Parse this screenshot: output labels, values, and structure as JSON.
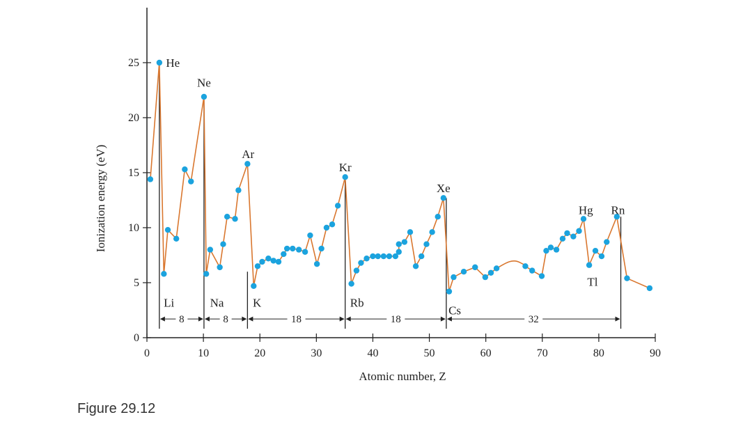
{
  "caption": "Figure 29.12",
  "colors": {
    "line": "#d9772f",
    "point": "#1ba3de",
    "axis": "#222222",
    "text": "#222222"
  },
  "chart_data": {
    "type": "line",
    "xlabel": "Atomic number, Z",
    "ylabel": "Ionization energy (eV)",
    "xlim": [
      0,
      90
    ],
    "ylim": [
      0,
      30
    ],
    "x_ticks": [
      0,
      10,
      20,
      30,
      40,
      50,
      60,
      70,
      80,
      90
    ],
    "y_ticks": [
      0,
      5,
      10,
      15,
      20,
      25
    ],
    "grid": false,
    "points": [
      [
        0.6,
        14.4
      ],
      [
        2.2,
        25.0
      ],
      [
        3,
        5.8
      ],
      [
        3.7,
        9.8
      ],
      [
        5.2,
        9.0
      ],
      [
        6.7,
        15.3
      ],
      [
        7.8,
        14.2
      ],
      [
        10.1,
        21.9
      ],
      [
        10.5,
        5.8
      ],
      [
        11.2,
        8.0
      ],
      [
        12.9,
        6.4
      ],
      [
        13.5,
        8.5
      ],
      [
        14.2,
        11.0
      ],
      [
        15.6,
        10.8
      ],
      [
        16.2,
        13.4
      ],
      [
        17.8,
        15.8
      ],
      [
        18.9,
        4.7
      ],
      [
        19.6,
        6.5
      ],
      [
        20.4,
        6.9
      ],
      [
        21.5,
        7.2
      ],
      [
        22.4,
        7.0
      ],
      [
        23.3,
        6.9
      ],
      [
        24.2,
        7.6
      ],
      [
        24.8,
        8.1
      ],
      [
        25.8,
        8.1
      ],
      [
        26.9,
        8.0
      ],
      [
        28.0,
        7.8
      ],
      [
        28.9,
        9.3
      ],
      [
        30.1,
        6.7
      ],
      [
        30.9,
        8.1
      ],
      [
        31.8,
        10.0
      ],
      [
        32.8,
        10.3
      ],
      [
        33.8,
        12.0
      ],
      [
        35.1,
        14.6
      ],
      [
        36.2,
        4.9
      ],
      [
        37.1,
        6.1
      ],
      [
        37.9,
        6.8
      ],
      [
        38.9,
        7.2
      ],
      [
        40.0,
        7.4
      ],
      [
        40.9,
        7.4
      ],
      [
        41.9,
        7.4
      ],
      [
        42.9,
        7.4
      ],
      [
        44.0,
        7.4
      ],
      [
        44.6,
        7.8
      ],
      [
        44.6,
        8.5
      ],
      [
        45.6,
        8.7
      ],
      [
        46.6,
        9.6
      ],
      [
        47.6,
        6.5
      ],
      [
        48.6,
        7.4
      ],
      [
        49.5,
        8.5
      ],
      [
        50.5,
        9.6
      ],
      [
        51.5,
        11.0
      ],
      [
        52.5,
        12.7
      ],
      [
        53.5,
        4.2
      ],
      [
        54.3,
        5.5
      ],
      [
        56.1,
        6.0
      ],
      [
        58.1,
        6.4
      ],
      [
        59.9,
        5.5
      ],
      [
        60.9,
        5.9
      ],
      [
        61.9,
        6.3
      ],
      [
        67.0,
        6.5
      ],
      [
        68.2,
        6.1
      ],
      [
        69.9,
        5.6
      ],
      [
        70.7,
        7.9
      ],
      [
        71.5,
        8.2
      ],
      [
        72.5,
        8.0
      ],
      [
        73.6,
        9.0
      ],
      [
        74.4,
        9.5
      ],
      [
        75.5,
        9.2
      ],
      [
        76.5,
        9.7
      ],
      [
        77.3,
        10.8
      ],
      [
        78.3,
        6.6
      ],
      [
        79.4,
        7.9
      ],
      [
        80.5,
        7.4
      ],
      [
        81.4,
        8.7
      ],
      [
        83.2,
        11.0
      ],
      [
        85.0,
        5.4
      ],
      [
        89.0,
        4.5
      ]
    ],
    "smooth_segment": [
      [
        61.9,
        6.3
      ],
      [
        63.0,
        6.6
      ],
      [
        64.5,
        6.85
      ],
      [
        66.0,
        6.85
      ],
      [
        67.0,
        6.5
      ]
    ],
    "element_labels": [
      {
        "text": "He",
        "x": 4.6,
        "y": 25.0
      },
      {
        "text": "Ne",
        "x": 10.1,
        "y": 23.2
      },
      {
        "text": "Ar",
        "x": 17.9,
        "y": 16.7
      },
      {
        "text": "Kr",
        "x": 35.1,
        "y": 15.5
      },
      {
        "text": "Xe",
        "x": 52.5,
        "y": 13.6
      },
      {
        "text": "Hg",
        "x": 77.7,
        "y": 11.6
      },
      {
        "text": "Rn",
        "x": 83.4,
        "y": 11.6
      },
      {
        "text": "Li",
        "x": 3.9,
        "y": 3.2
      },
      {
        "text": "Na",
        "x": 12.4,
        "y": 3.2
      },
      {
        "text": "K",
        "x": 19.5,
        "y": 3.2
      },
      {
        "text": "Rb",
        "x": 37.2,
        "y": 3.2
      },
      {
        "text": "Cs",
        "x": 54.5,
        "y": 2.5
      },
      {
        "text": "Tl",
        "x": 78.9,
        "y": 5.1
      }
    ],
    "shell_markers": [
      {
        "x": 2.2,
        "y_top": 25.0
      },
      {
        "x": 10.1,
        "y_top": 21.9
      },
      {
        "x": 17.8,
        "y_top": 6.0
      },
      {
        "x": 35.1,
        "y_top": 14.6
      },
      {
        "x": 53.0,
        "y_top": 12.7
      },
      {
        "x": 83.9,
        "y_top": 11.0
      }
    ],
    "period_brackets": [
      {
        "from": 2.2,
        "to": 10.1,
        "label": "8"
      },
      {
        "from": 10.1,
        "to": 17.8,
        "label": "8"
      },
      {
        "from": 17.8,
        "to": 35.1,
        "label": "18"
      },
      {
        "from": 35.1,
        "to": 53.0,
        "label": "18"
      },
      {
        "from": 53.0,
        "to": 83.9,
        "label": "32"
      }
    ],
    "bracket_y": 1.7
  }
}
